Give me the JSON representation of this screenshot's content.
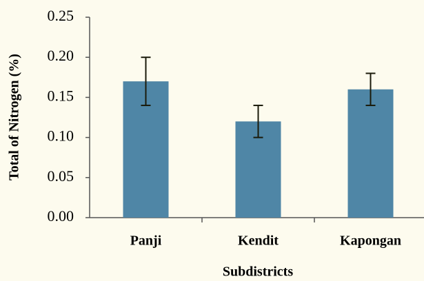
{
  "chart_data": {
    "type": "bar",
    "x_label": "Subdistricts",
    "y_label": "Total of Nitrogen (%)",
    "categories": [
      "Panji",
      "Kendit",
      "Kapongan"
    ],
    "values": [
      0.17,
      0.12,
      0.16
    ],
    "errors": [
      0.03,
      0.02,
      0.02
    ],
    "color": "#4f86a6",
    "ylim": [
      0,
      0.25
    ],
    "yticks": [
      {
        "value": 0,
        "label": "0.00"
      },
      0.05,
      {
        "value": 0.1,
        "label": "0.10"
      },
      0.15,
      {
        "value": 0.2,
        "label": "0.20"
      },
      0.25
    ]
  }
}
